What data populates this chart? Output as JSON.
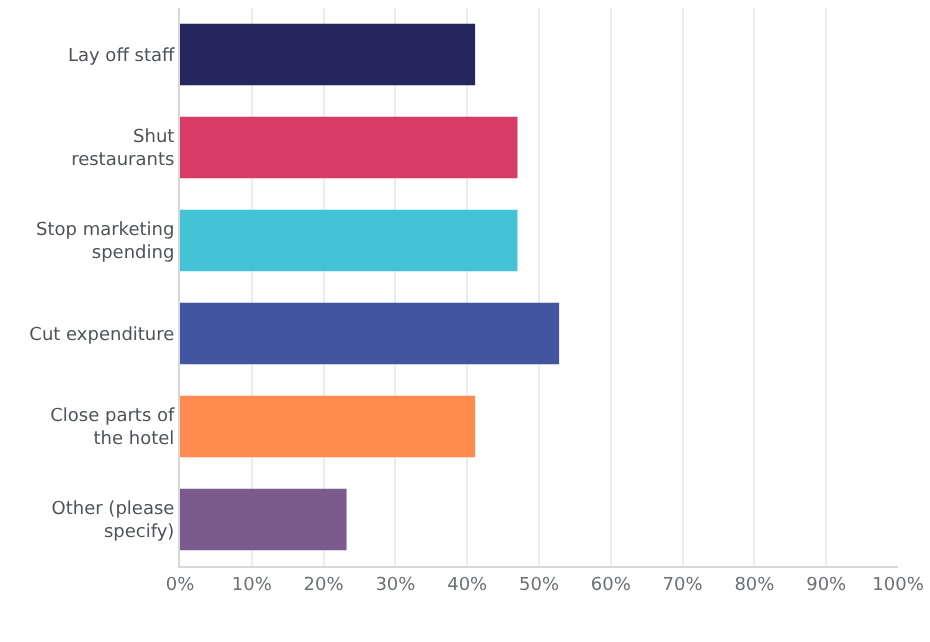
{
  "chart_data": {
    "type": "bar",
    "orientation": "horizontal",
    "categories": [
      "Lay off staff",
      "Shut\nrestaurants",
      "Stop marketing\nspending",
      "Cut expenditure",
      "Close parts of\nthe hotel",
      "Other (please\nspecify)"
    ],
    "values": [
      41.1,
      47.0,
      47.0,
      52.8,
      41.1,
      23.2
    ],
    "colors": [
      "#25265e",
      "#d83c66",
      "#44c2d6",
      "#4255a0",
      "#ff8b4f",
      "#7b5b8d"
    ],
    "xlim": [
      0,
      100
    ],
    "xticks": [
      {
        "value": 0,
        "label": "0%"
      },
      {
        "value": 10,
        "label": "10%"
      },
      {
        "value": 20,
        "label": "20%"
      },
      {
        "value": 30,
        "label": "30%"
      },
      {
        "value": 40,
        "label": "40%"
      },
      {
        "value": 50,
        "label": "50%"
      },
      {
        "value": 60,
        "label": "60%"
      },
      {
        "value": 70,
        "label": "70%"
      },
      {
        "value": 80,
        "label": "80%"
      },
      {
        "value": 90,
        "label": "90%"
      },
      {
        "value": 100,
        "label": "100%"
      }
    ],
    "grid": "x"
  }
}
